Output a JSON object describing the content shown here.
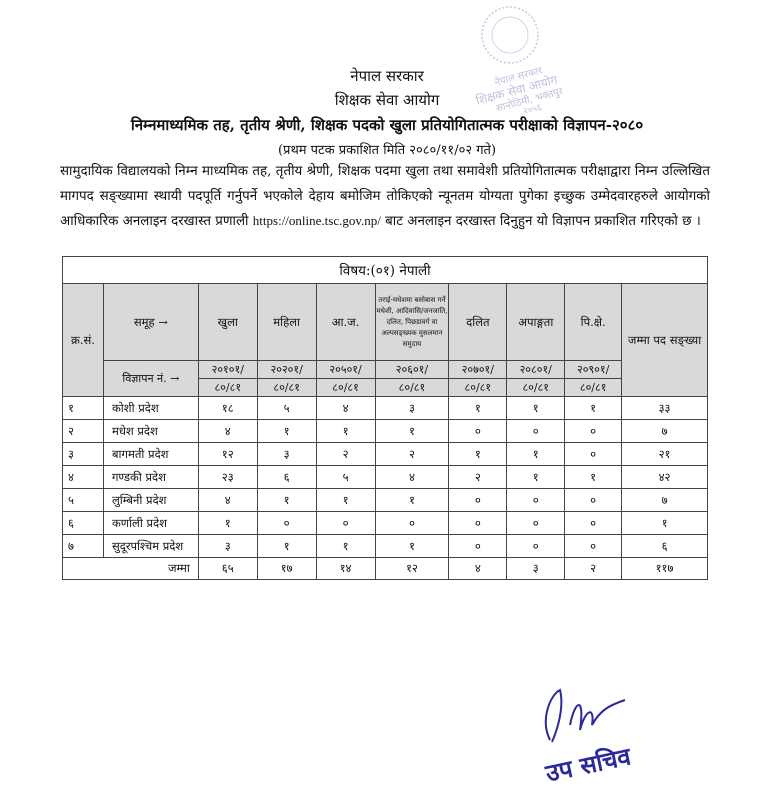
{
  "header": {
    "government": "नेपाल सरकार",
    "commission": "शिक्षक सेवा आयोग",
    "title": "निम्नमाध्यमिक तह, तृतीय श्रेणी, शिक्षक पदको खुला प्रतियोगितात्मक परीक्षाको विज्ञापन-२०८०",
    "published": "(प्रथम पटक प्रकाशित मिति २०८०/११/०२ गते)"
  },
  "paragraph": {
    "text_before_url": "सामुदायिक विद्यालयको निम्न माध्यमिक तह, तृतीय श्रेणी, शिक्षक पदमा खुला तथा समावेशी प्रतियोगितात्मक परीक्षाद्वारा निम्न उल्लिखित मागपद सङ्ख्यामा स्थायी पदपूर्ति गर्नुपर्ने भएकोले देहाय बमोजिम तोकिएको न्यूनतम योग्यता पुगेका इच्छुक उम्मेदवारहरुले आयोगको आधिकारिक अनलाइन दरखास्त प्रणाली",
    "url": "https://online.tsc.gov.np/",
    "text_after_url": "बाट अनलाइन दरखास्त दिनुहुन यो विज्ञापन प्रकाशित गरिएको छ ।"
  },
  "table": {
    "subject": "विषय:(०१) नेपाली",
    "sn_header": "क्र.सं.",
    "group_header": "समूह →",
    "ad_no_header": "विज्ञापन नं. →",
    "total_header": "जम्मा पद सङ्ख्या",
    "columns": [
      {
        "label": "खुला",
        "ad_no": "२०१०१/",
        "year": "८०/८१"
      },
      {
        "label": "महिला",
        "ad_no": "२०२०१/",
        "year": "८०/८१"
      },
      {
        "label": "आ.ज.",
        "ad_no": "२०५०१/",
        "year": "८०/८१"
      },
      {
        "label": "तराई-मधेशमा बसोबास गर्ने मधेशी, आदिवासि/जनजाति, दलित, पिछडावर्ग वा अल्पसङ्ख्यक मुसलमान समुदाय",
        "ad_no": "२०६०१/",
        "year": "८०/८१"
      },
      {
        "label": "दलित",
        "ad_no": "२०७०१/",
        "year": "८०/८१"
      },
      {
        "label": "अपाङ्गता",
        "ad_no": "२०८०१/",
        "year": "८०/८१"
      },
      {
        "label": "पि.क्षे.",
        "ad_no": "२०९०१/",
        "year": "८०/८१"
      }
    ],
    "rows": [
      {
        "sn": "१",
        "province": "कोशी प्रदेश",
        "values": [
          "१८",
          "५",
          "४",
          "३",
          "१",
          "१",
          "१"
        ],
        "total": "३३"
      },
      {
        "sn": "२",
        "province": "मधेश प्रदेश",
        "values": [
          "४",
          "१",
          "१",
          "१",
          "०",
          "०",
          "०"
        ],
        "total": "७"
      },
      {
        "sn": "३",
        "province": "बागमती प्रदेश",
        "values": [
          "१२",
          "३",
          "२",
          "२",
          "१",
          "१",
          "०"
        ],
        "total": "२१"
      },
      {
        "sn": "४",
        "province": "गण्डकी प्रदेश",
        "values": [
          "२३",
          "६",
          "५",
          "४",
          "२",
          "१",
          "१"
        ],
        "total": "४२"
      },
      {
        "sn": "५",
        "province": "लुम्बिनी प्रदेश",
        "values": [
          "४",
          "१",
          "१",
          "१",
          "०",
          "०",
          "०"
        ],
        "total": "७"
      },
      {
        "sn": "६",
        "province": "कर्णाली प्रदेश",
        "values": [
          "१",
          "०",
          "०",
          "०",
          "०",
          "०",
          "०"
        ],
        "total": "१"
      },
      {
        "sn": "७",
        "province": "सुदूरपश्चिम प्रदेश",
        "values": [
          "३",
          "१",
          "१",
          "१",
          "०",
          "०",
          "०"
        ],
        "total": "६"
      }
    ],
    "totals": {
      "label": "जम्मा",
      "values": [
        "६५",
        "१७",
        "१४",
        "१२",
        "४",
        "३",
        "२"
      ],
      "total": "११७"
    }
  },
  "stamp": {
    "text": "नेपाल सरकार शिक्षक सेवा आयोग सानोठिमी, भक्तपुर २०५६",
    "color": "#8a8ac8"
  },
  "signature": {
    "title": "उप सचिव",
    "color": "#2a2a9a"
  }
}
